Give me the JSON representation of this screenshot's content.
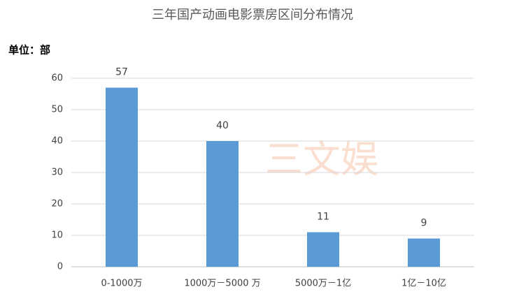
{
  "chart_data": {
    "type": "bar",
    "title": "三年国产动画电影票房区间分布情况",
    "y_label": "单位：部",
    "watermark": "三文娱",
    "categories": [
      "0-1000万",
      "1000万－5000 万",
      "5000万－1亿",
      "1亿－10亿"
    ],
    "values": [
      57,
      40,
      11,
      9
    ],
    "color": "#5b9bd5",
    "ylim": [
      0,
      60
    ],
    "yticks": [
      0,
      10,
      20,
      30,
      40,
      50,
      60
    ],
    "grid": true,
    "data_labels": true
  }
}
